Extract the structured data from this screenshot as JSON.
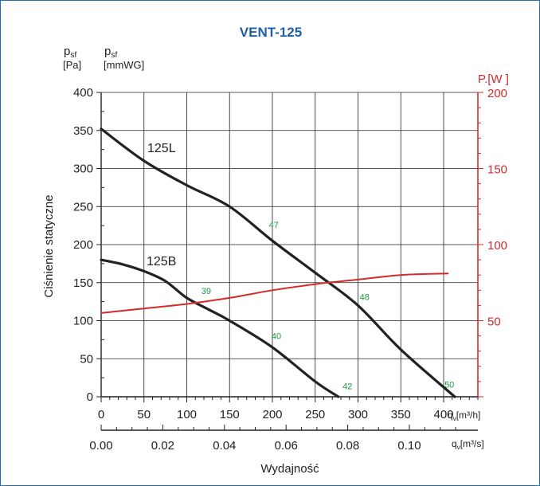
{
  "colors": {
    "frame": "#1f6fb5",
    "title": "#1f5fa8",
    "curves": "#222222",
    "power": "#d42a2a",
    "noise": "#1a9a3a",
    "grid": "#222222"
  },
  "chart_data": {
    "type": "line",
    "title": "VENT-125",
    "ylabel": "Ciśnienie statyczne",
    "xlabel": "Wydajność",
    "left_axis": {
      "symbol": "p",
      "subscript": "sf",
      "unit": "[Pa]",
      "range": [
        0,
        400
      ],
      "ticks": [
        0,
        50,
        100,
        150,
        200,
        250,
        300,
        350,
        400
      ]
    },
    "second_left_axis": {
      "symbol": "p",
      "subscript": "sf",
      "unit": "[mmWG]"
    },
    "right_axis": {
      "label": "P.[W ]",
      "range": [
        0,
        200
      ],
      "ticks": [
        50,
        100,
        150,
        200
      ]
    },
    "x_axis": {
      "label": "q",
      "subscript": "v",
      "unit": "[m³/h]",
      "range": [
        0,
        440
      ],
      "ticks": [
        0,
        50,
        100,
        150,
        200,
        250,
        300,
        350,
        400
      ]
    },
    "x2_axis": {
      "label": "q",
      "subscript": "v",
      "unit": "[m³/s]",
      "ticks": [
        "0.00",
        "0.02",
        "0.04",
        "0.06",
        "0.08",
        "0.10"
      ],
      "tick_values": [
        0.0,
        0.02,
        0.04,
        0.06,
        0.08,
        0.1
      ]
    },
    "grid": true,
    "series": [
      {
        "name": "125L",
        "axis": "left",
        "x": [
          0,
          50,
          100,
          150,
          200,
          250,
          300,
          350,
          413
        ],
        "y": [
          352,
          310,
          278,
          250,
          205,
          163,
          120,
          62,
          0
        ]
      },
      {
        "name": "125B",
        "axis": "left",
        "x": [
          0,
          25,
          50,
          75,
          100,
          125,
          150,
          200,
          250,
          277
        ],
        "y": [
          180,
          174,
          165,
          152,
          130,
          115,
          100,
          65,
          20,
          0
        ]
      },
      {
        "name": "",
        "axis": "right",
        "x": [
          0,
          50,
          100,
          150,
          200,
          250,
          300,
          350,
          405
        ],
        "y": [
          55,
          58,
          61,
          65,
          70,
          74,
          77,
          80,
          81
        ]
      }
    ],
    "annotations": [
      {
        "text": "47",
        "x": 196,
        "y": 222
      },
      {
        "text": "39",
        "x": 117,
        "y": 135
      },
      {
        "text": "48",
        "x": 302,
        "y": 127
      },
      {
        "text": "40",
        "x": 199,
        "y": 76
      },
      {
        "text": "42",
        "x": 282,
        "y": 10
      },
      {
        "text": "50",
        "x": 401,
        "y": 12
      }
    ]
  }
}
